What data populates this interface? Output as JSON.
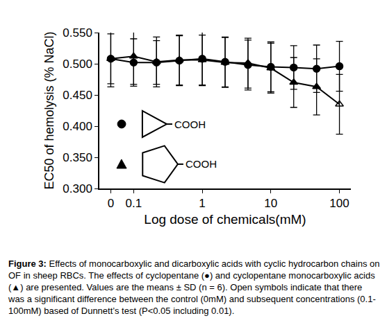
{
  "chart_data": {
    "type": "line",
    "x_label": "Log dose of chemicals(mM)",
    "y_label": "EC50 of hemolysis (% NaCl)",
    "categories": [
      "0",
      "0.1",
      null,
      null,
      "1",
      null,
      null,
      "10",
      null,
      null,
      "100"
    ],
    "ylim": [
      0.3,
      0.55
    ],
    "yticks": [
      {
        "value": 0.3,
        "label": "0.300"
      },
      {
        "value": 0.35,
        "label": "0.350"
      },
      {
        "value": 0.4,
        "label": "0.400"
      },
      {
        "value": 0.45,
        "label": "0.450"
      },
      {
        "value": 0.5,
        "label": "0.500"
      },
      {
        "value": 0.55,
        "label": "0.550"
      }
    ],
    "grid": false,
    "series": [
      {
        "color": "#000000",
        "marker": "circle",
        "values": [
          0.508,
          0.502,
          0.502,
          0.505,
          0.508,
          0.503,
          0.498,
          0.495,
          0.494,
          0.492,
          0.496
        ],
        "error": [
          0.045,
          0.038,
          0.035,
          0.04,
          0.043,
          0.04,
          0.04,
          0.04,
          0.035,
          0.038,
          0.04
        ]
      },
      {
        "color": "#000000",
        "marker": [
          "triangle",
          "triangle",
          "triangle",
          "triangle",
          "triangle",
          "triangle",
          "triangle",
          "triangle",
          "triangle",
          "triangle",
          "triangle-open"
        ],
        "values": [
          0.508,
          0.512,
          0.503,
          0.506,
          0.506,
          0.502,
          0.501,
          0.493,
          0.47,
          0.463,
          0.435
        ],
        "error": [
          0.04,
          0.045,
          0.04,
          0.04,
          0.04,
          0.04,
          0.04,
          0.04,
          0.04,
          0.045,
          0.048
        ]
      }
    ],
    "annotations": [
      "COOH",
      "COOH"
    ]
  },
  "caption": {
    "label": "Figure 3:",
    "text": "Effects of monocarboxylic and dicarboxylic acids with cyclic hydrocarbon chains on OF in sheep RBCs. The effects of cyclopentane (●) and cyclopentane monocarboxylic acids (▲) are presented. Values are the means ± SD (n = 6). Open symbols indicate that there was a significant difference between the control (0mM) and subsequent concentrations (0.1-100mM) based of Dunnett’s test (P<0.05 including 0.01)."
  }
}
